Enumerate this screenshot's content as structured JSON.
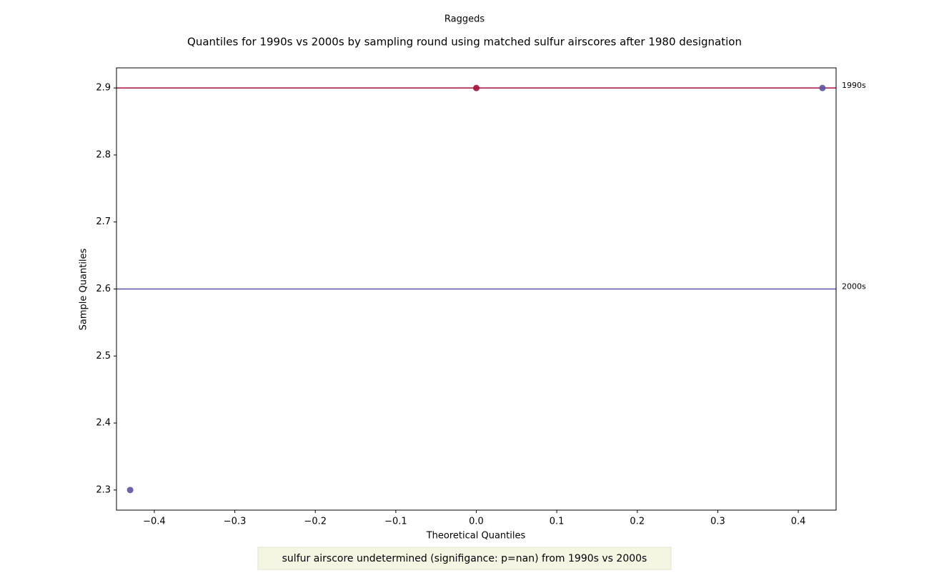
{
  "chart_data": {
    "type": "scatter",
    "suptitle": "Raggeds",
    "title": "Quantiles for 1990s vs 2000s by sampling round using matched sulfur airscores after 1980 designation",
    "xlabel": "Theoretical Quantiles",
    "ylabel": "Sample Quantiles",
    "xlim": [
      -0.447,
      0.447
    ],
    "ylim": [
      2.27,
      2.93
    ],
    "xticks": [
      {
        "value": -0.4,
        "label": "−0.4"
      },
      {
        "value": -0.3,
        "label": "−0.3"
      },
      {
        "value": -0.2,
        "label": "−0.2"
      },
      {
        "value": -0.1,
        "label": "−0.1"
      },
      {
        "value": 0,
        "label": "0.0"
      },
      0.1,
      0.2,
      0.3,
      0.4
    ],
    "yticks": [
      2.3,
      2.4,
      2.5,
      2.6,
      2.7,
      2.8,
      2.9
    ],
    "series": [
      {
        "name": "1990s",
        "color": "#a50f3c",
        "x": [
          0.0
        ],
        "values": [
          2.9
        ],
        "line": 2.9
      },
      {
        "name": "2000s",
        "color": "#5b52a3",
        "x": [
          -0.43,
          0.43
        ],
        "values": [
          2.3,
          2.9
        ],
        "line": 2.6
      }
    ],
    "note": "sulfur airscore undetermined (signifigance: p=nan) from 1990s vs 2000s"
  }
}
